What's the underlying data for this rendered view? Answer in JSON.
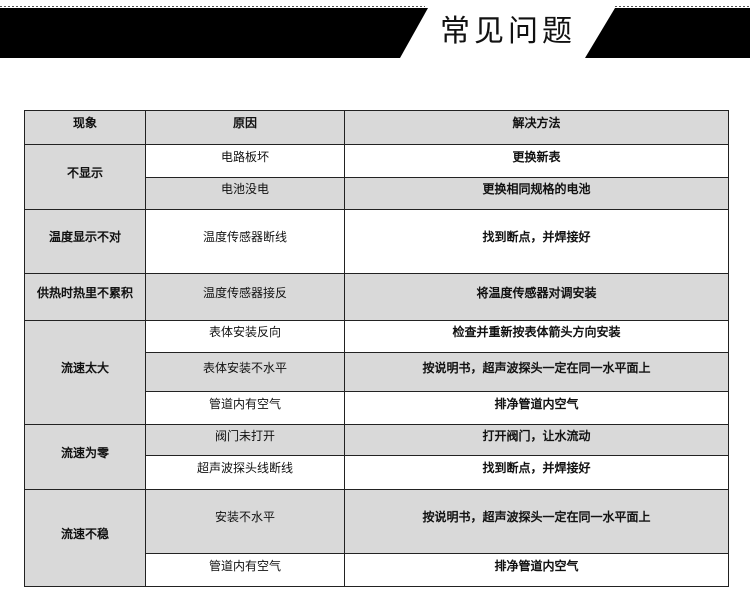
{
  "header": {
    "title": "常见问题",
    "bar_color": "#000000"
  },
  "table": {
    "columns": [
      "现象",
      "原因",
      "解决方法"
    ],
    "groups": [
      {
        "phenomenon": "不显示",
        "rows": [
          {
            "cause": "电路板坏",
            "solution": "更换新表"
          },
          {
            "cause": "电池没电",
            "solution": "更换相同规格的电池"
          }
        ]
      },
      {
        "phenomenon": "温度显示不对",
        "rows": [
          {
            "cause": "温度传感器断线",
            "solution": "找到断点，并焊接好"
          }
        ]
      },
      {
        "phenomenon": "供热时热里不累积",
        "rows": [
          {
            "cause": "温度传感器接反",
            "solution": "将温度传感器对调安装"
          }
        ]
      },
      {
        "phenomenon": "流速太大",
        "rows": [
          {
            "cause": "表体安装反向",
            "solution": "检查并重新按表体箭头方向安装"
          },
          {
            "cause": "表体安装不水平",
            "solution": "按说明书，超声波探头一定在同一水平面上"
          },
          {
            "cause": "管道内有空气",
            "solution": "排净管道内空气"
          }
        ]
      },
      {
        "phenomenon": "流速为零",
        "rows": [
          {
            "cause": "阀门未打开",
            "solution": "打开阀门，让水流动"
          },
          {
            "cause": "超声波探头线断线",
            "solution": "找到断点，并焊接好"
          }
        ]
      },
      {
        "phenomenon": "流速不稳",
        "rows": [
          {
            "cause": "安装不水平",
            "solution": "按说明书，超声波探头一定在同一水平面上"
          },
          {
            "cause": "管道内有空气",
            "solution": "排净管道内空气"
          }
        ]
      }
    ]
  }
}
